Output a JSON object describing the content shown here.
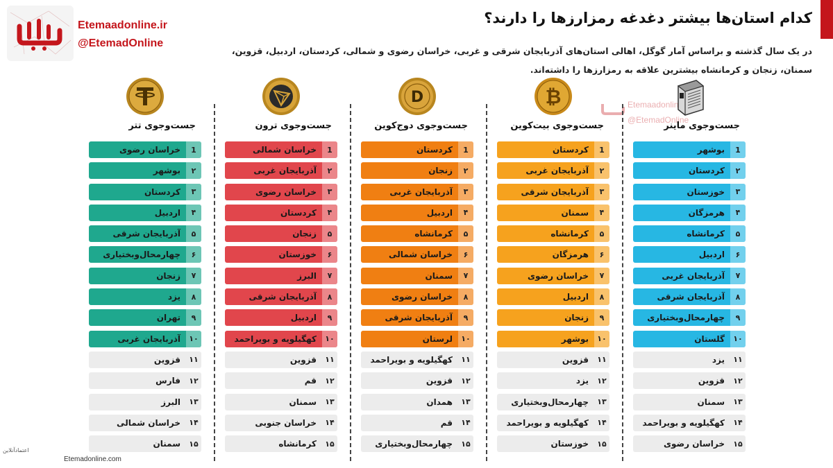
{
  "header": {
    "logo_name": "etemad-logo",
    "brand_site": "Etemaadonline.ir",
    "brand_handle": "@EtemadOnline",
    "title": "کدام استان‌ها بیشتر دغدغه رمزارزها را دارند؟",
    "description": "در یک سال گذشته و براساس آمار گوگل، اهالی استان‌های آذربایجان شرقی و غربی، خراسان رضوی و شمالی، کردستان، اردبیل، قزوین، سمنان، زنجان و کرمانشاه بیشترین علاقه به رمزارزها را داشته‌اند."
  },
  "colors": {
    "brand_red": "#c4161c",
    "miner": "#27b7e3",
    "bitcoin": "#f6a21e",
    "doge": "#f07f12",
    "tron": "#e1464c",
    "tether": "#1fa88e",
    "rest": "#ececec"
  },
  "columns": [
    {
      "key": "miner",
      "title": "جست‌وجوی ماینر",
      "icon": "miner-device-icon",
      "items": [
        "بوشهر",
        "کردستان",
        "خوزستان",
        "هرمزگان",
        "کرمانشاه",
        "اردبیل",
        "آذربایجان غربی",
        "آذربایجان شرقی",
        "چهارمحال‌وبختیاری",
        "گلستان",
        "یزد",
        "قزوین",
        "سمنان",
        "کهگیلویه و بویراحمد",
        "خراسان رضوی"
      ],
      "ranks": [
        "1",
        "۲",
        "۳",
        "۴",
        "۵",
        "۶",
        "۷",
        "۸",
        "۹",
        "۱۰",
        "۱۱",
        "۱۲",
        "۱۳",
        "۱۴",
        "۱۵"
      ]
    },
    {
      "key": "bitcoin",
      "title": "جست‌وجوی بیت‌کوین",
      "icon": "bitcoin-icon",
      "items": [
        "کردستان",
        "آذربایجان غربی",
        "آذربایجان شرقی",
        "سمنان",
        "کرمانشاه",
        "هرمزگان",
        "خراسان رضوی",
        "اردبیل",
        "زنجان",
        "بوشهر",
        "قزوین",
        "یزد",
        "چهارمحال‌وبختیاری",
        "کهگیلویه و بویراحمد",
        "خوزستان"
      ],
      "ranks": [
        "1",
        "۲",
        "۳",
        "۴",
        "۵",
        "۶",
        "۷",
        "۸",
        "۹",
        "۱۰",
        "۱۱",
        "۱۲",
        "۱۳",
        "۱۴",
        "۱۵"
      ]
    },
    {
      "key": "doge",
      "title": "جست‌وجوی دوج‌کوین",
      "icon": "dogecoin-icon",
      "items": [
        "کردستان",
        "زنجان",
        "آذربایجان غربی",
        "اردبیل",
        "کرمانشاه",
        "خراسان شمالی",
        "سمنان",
        "خراسان رضوی",
        "آذربایجان شرقی",
        "لرستان",
        "کهگیلویه و بویراحمد",
        "قزوین",
        "همدان",
        "قم",
        "چهارمحال‌وبختیاری"
      ],
      "ranks": [
        "1",
        "۲",
        "۳",
        "۴",
        "۵",
        "۶",
        "۷",
        "۸",
        "۹",
        "۱۰",
        "۱۱",
        "۱۲",
        "۱۳",
        "۱۴",
        "۱۵"
      ]
    },
    {
      "key": "tron",
      "title": "جست‌وجوی ترون",
      "icon": "tron-icon",
      "items": [
        "خراسان شمالی",
        "آذربایجان غربی",
        "خراسان رضوی",
        "کردستان",
        "زنجان",
        "خوزستان",
        "البرز",
        "آذربایجان شرقی",
        "اردبیل",
        "کهگیلویه و بویراحمد",
        "قزوین",
        "قم",
        "سمنان",
        "خراسان جنوبی",
        "کرمانشاه"
      ],
      "ranks": [
        "1",
        "۲",
        "۳",
        "۴",
        "۵",
        "۶",
        "۷",
        "۸",
        "۹",
        "۱۰",
        "۱۱",
        "۱۲",
        "۱۳",
        "۱۴",
        "۱۵"
      ]
    },
    {
      "key": "tether",
      "title": "جست‌وجوی تتر",
      "icon": "tether-icon",
      "items": [
        "خراسان رضوی",
        "بوشهر",
        "کردستان",
        "اردبیل",
        "آذربایجان شرقی",
        "چهارمحال‌وبختیاری",
        "زنجان",
        "یزد",
        "تهران",
        "آذربایجان غربی",
        "قزوین",
        "فارس",
        "البرز",
        "خراسان شمالی",
        "سمنان"
      ],
      "ranks": [
        "1",
        "۲",
        "۳",
        "۴",
        "۵",
        "۶",
        "۷",
        "۸",
        "۹",
        "۱۰",
        "۱۱",
        "۱۲",
        "۱۳",
        "۱۴",
        "۱۵"
      ]
    }
  ],
  "watermark": {
    "site": "Etemaadonline.ir",
    "handle": "@EtemadOnline"
  },
  "footer": {
    "site": "Etemadonline.com",
    "brand_fa": "اعتمادآنلاین"
  }
}
